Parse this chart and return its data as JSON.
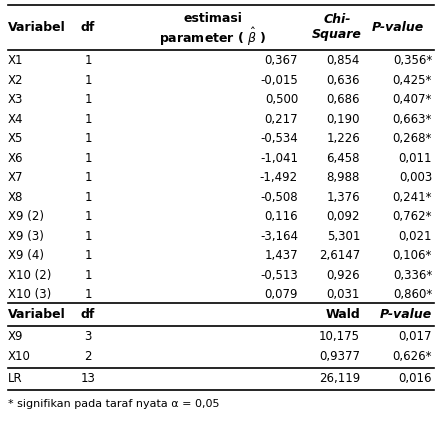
{
  "rows": [
    [
      "X1",
      "1",
      "0,367",
      "0,854",
      "0,356*"
    ],
    [
      "X2",
      "1",
      "-0,015",
      "0,636",
      "0,425*"
    ],
    [
      "X3",
      "1",
      "0,500",
      "0,686",
      "0,407*"
    ],
    [
      "X4",
      "1",
      "0,217",
      "0,190",
      "0,663*"
    ],
    [
      "X5",
      "1",
      "-0,534",
      "1,226",
      "0,268*"
    ],
    [
      "X6",
      "1",
      "-1,041",
      "6,458",
      "0,011"
    ],
    [
      "X7",
      "1",
      "-1,492",
      "8,988",
      "0,003"
    ],
    [
      "X8",
      "1",
      "-0,508",
      "1,376",
      "0,241*"
    ],
    [
      "X9 (2)",
      "1",
      "0,116",
      "0,092",
      "0,762*"
    ],
    [
      "X9 (3)",
      "1",
      "-3,164",
      "5,301",
      "0,021"
    ],
    [
      "X9 (4)",
      "1",
      "1,437",
      "2,6147",
      "0,106*"
    ],
    [
      "X10 (2)",
      "1",
      "-0,513",
      "0,926",
      "0,336*"
    ],
    [
      "X10 (3)",
      "1",
      "0,079",
      "0,031",
      "0,860*"
    ]
  ],
  "bottom_rows": [
    [
      "X9",
      "3",
      "",
      "10,175",
      "0,017"
    ],
    [
      "X10",
      "2",
      "",
      "0,9377",
      "0,626*"
    ],
    [
      "LR",
      "13",
      "",
      "26,119",
      "0,016"
    ]
  ],
  "footnote": "* signifikan pada taraf nyata α = 0,05"
}
